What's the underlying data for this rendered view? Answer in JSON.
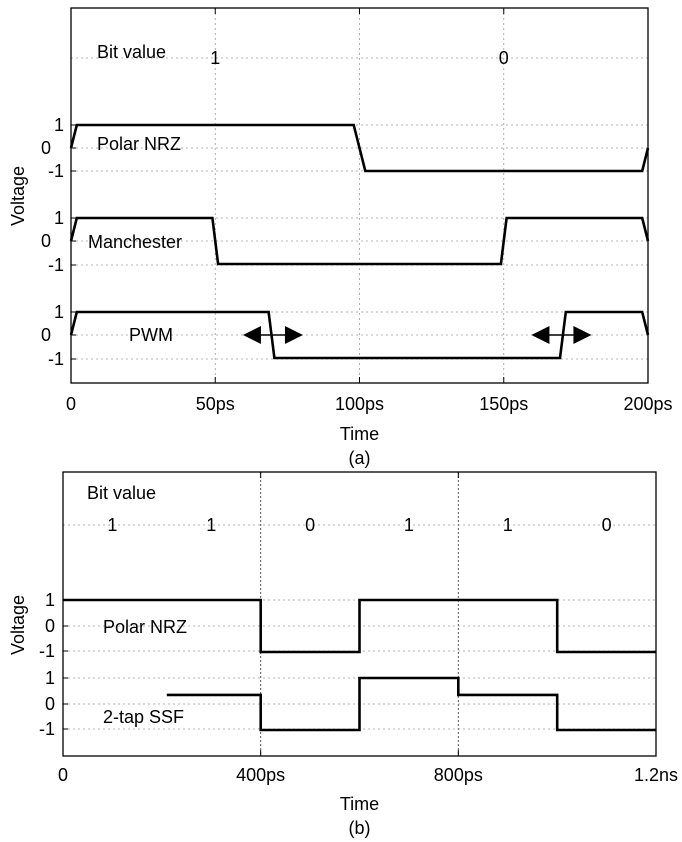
{
  "chart_data": [
    {
      "type": "line",
      "panel_label": "(a)",
      "xlabel": "Time",
      "ylabel": "Voltage",
      "x_unit": "ps",
      "xlim": [
        0,
        200
      ],
      "xticks": [
        0,
        50,
        100,
        150,
        200
      ],
      "xtick_labels": [
        "0",
        "50ps",
        "100ps",
        "150ps",
        "200ps"
      ],
      "grid": true,
      "annotations": {
        "bit_value_label": "Bit value",
        "bits": [
          {
            "label": "1",
            "x": 50
          },
          {
            "label": "0",
            "x": 150
          }
        ]
      },
      "series": [
        {
          "name": "Polar NRZ",
          "ytick_labels": [
            "1",
            "0",
            "-1"
          ],
          "points": [
            [
              0,
              0
            ],
            [
              2,
              1
            ],
            [
              98,
              1
            ],
            [
              102,
              -1
            ],
            [
              198,
              -1
            ],
            [
              200,
              0
            ]
          ]
        },
        {
          "name": "Manchester",
          "ytick_labels": [
            "1",
            "0",
            "-1"
          ],
          "points": [
            [
              0,
              0
            ],
            [
              2,
              1
            ],
            [
              49,
              1
            ],
            [
              51,
              -1
            ],
            [
              149,
              -1
            ],
            [
              151,
              1
            ],
            [
              198,
              1
            ],
            [
              200,
              0
            ]
          ]
        },
        {
          "name": "PWM",
          "ytick_labels": [
            "1",
            "0",
            "-1"
          ],
          "points": [
            [
              0,
              0
            ],
            [
              2,
              1
            ],
            [
              68.5,
              1
            ],
            [
              70.5,
              -1
            ],
            [
              169.5,
              -1
            ],
            [
              171.5,
              1
            ],
            [
              198,
              1
            ],
            [
              200,
              0
            ]
          ],
          "markers": [
            {
              "type": "double-arrow",
              "x": 70
            },
            {
              "type": "double-arrow",
              "x": 170
            }
          ]
        }
      ]
    },
    {
      "type": "line",
      "panel_label": "(b)",
      "xlabel": "Time",
      "ylabel": "Voltage",
      "x_unit": "ps",
      "xlim": [
        0,
        1200
      ],
      "xticks": [
        0,
        400,
        800,
        1200
      ],
      "xtick_labels": [
        "0",
        "400ps",
        "800ps",
        "1.2ns"
      ],
      "grid": true,
      "annotations": {
        "bit_value_label": "Bit value",
        "bits": [
          {
            "label": "1",
            "x": 100
          },
          {
            "label": "1",
            "x": 300
          },
          {
            "label": "0",
            "x": 500
          },
          {
            "label": "1",
            "x": 700
          },
          {
            "label": "1",
            "x": 900
          },
          {
            "label": "0",
            "x": 1100
          }
        ]
      },
      "series": [
        {
          "name": "Polar NRZ",
          "ytick_labels": [
            "1",
            "0",
            "-1"
          ],
          "points": [
            [
              0,
              1
            ],
            [
              400,
              1
            ],
            [
              400,
              -1
            ],
            [
              600,
              -1
            ],
            [
              600,
              1
            ],
            [
              1000,
              1
            ],
            [
              1000,
              -1
            ],
            [
              1200,
              -1
            ]
          ]
        },
        {
          "name": "2-tap SSF",
          "ytick_labels": [
            "1",
            "0",
            "-1"
          ],
          "points": [
            [
              210,
              0.35
            ],
            [
              400,
              0.35
            ],
            [
              400,
              -1
            ],
            [
              600,
              -1
            ],
            [
              600,
              1
            ],
            [
              800,
              1
            ],
            [
              800,
              0.35
            ],
            [
              1000,
              0.35
            ],
            [
              1000,
              -1
            ],
            [
              1200,
              -1
            ]
          ]
        }
      ]
    }
  ]
}
